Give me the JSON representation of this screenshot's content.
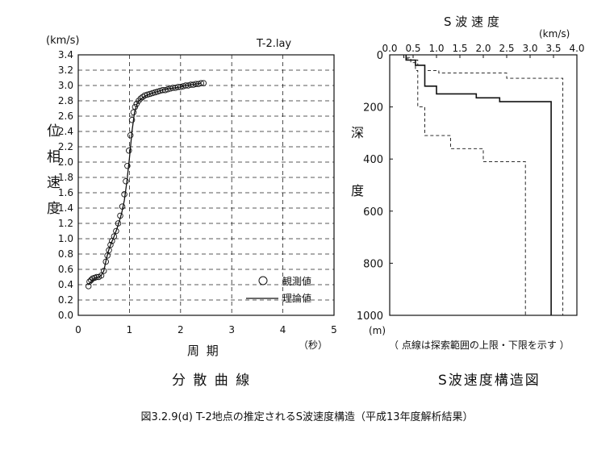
{
  "figure_caption": "図3.2.9(d)  T-2地点の推定されるS波速度構造（平成13年度解析結果）",
  "chart_data": [
    {
      "type": "scatter",
      "title": "T-2.lay",
      "caption": "分 散 曲 線",
      "xlabel": "周 期",
      "xunit": "（秒）",
      "ylabel": "位 相 速 度",
      "yunit": "(km/s)",
      "xlim": [
        0,
        5
      ],
      "ylim": [
        0,
        3.4
      ],
      "xticks": [
        "0",
        "1",
        "2",
        "3",
        "4",
        "5"
      ],
      "yticks": [
        "0.0",
        "0.2",
        "0.4",
        "0.6",
        "0.8",
        "1.0",
        "1.2",
        "1.4",
        "1.6",
        "1.8",
        "2.0",
        "2.2",
        "2.4",
        "2.6",
        "2.8",
        "3.0",
        "3.2",
        "3.4"
      ],
      "grid": true,
      "legend_position": "bottom-right",
      "series": [
        {
          "name": "観測値",
          "marker": "circle",
          "x": [
            0.2,
            0.22,
            0.25,
            0.28,
            0.32,
            0.36,
            0.4,
            0.45,
            0.5,
            0.54,
            0.57,
            0.6,
            0.63,
            0.66,
            0.7,
            0.74,
            0.78,
            0.82,
            0.86,
            0.9,
            0.93,
            0.96,
            0.99,
            1.02,
            1.05,
            1.08,
            1.11,
            1.14,
            1.18,
            1.22,
            1.26,
            1.3,
            1.35,
            1.4,
            1.45,
            1.5,
            1.55,
            1.6,
            1.65,
            1.7,
            1.75,
            1.8,
            1.85,
            1.9,
            1.95,
            2.0,
            2.05,
            2.1,
            2.15,
            2.2,
            2.25,
            2.3,
            2.35,
            2.4,
            2.45
          ],
          "y": [
            0.38,
            0.44,
            0.46,
            0.48,
            0.49,
            0.5,
            0.5,
            0.52,
            0.58,
            0.7,
            0.78,
            0.85,
            0.92,
            0.97,
            1.03,
            1.1,
            1.2,
            1.3,
            1.42,
            1.58,
            1.75,
            1.95,
            2.15,
            2.35,
            2.55,
            2.65,
            2.72,
            2.76,
            2.8,
            2.83,
            2.85,
            2.87,
            2.88,
            2.89,
            2.9,
            2.91,
            2.92,
            2.93,
            2.94,
            2.94,
            2.95,
            2.96,
            2.97,
            2.97,
            2.98,
            2.98,
            2.99,
            3.0,
            3.0,
            3.01,
            3.01,
            3.02,
            3.02,
            3.03,
            3.03
          ]
        },
        {
          "name": "理論値",
          "marker": "line",
          "x": [
            0.2,
            0.25,
            0.3,
            0.35,
            0.4,
            0.45,
            0.5,
            0.55,
            0.6,
            0.65,
            0.7,
            0.75,
            0.8,
            0.85,
            0.9,
            0.95,
            1.0,
            1.05,
            1.1,
            1.15,
            1.2,
            1.3,
            1.4,
            1.5,
            1.6,
            1.7,
            1.8,
            1.9,
            2.0,
            2.1,
            2.2,
            2.3,
            2.4
          ],
          "y": [
            0.4,
            0.44,
            0.47,
            0.49,
            0.5,
            0.52,
            0.58,
            0.74,
            0.86,
            0.95,
            1.03,
            1.12,
            1.22,
            1.34,
            1.5,
            1.74,
            2.05,
            2.4,
            2.65,
            2.76,
            2.81,
            2.86,
            2.89,
            2.91,
            2.93,
            2.95,
            2.96,
            2.97,
            2.98,
            3.0,
            3.01,
            3.02,
            3.03
          ]
        }
      ]
    },
    {
      "type": "line",
      "title": "S 波 速 度",
      "caption": "S波速度構造図",
      "xunit": "(km/s)",
      "ylabel": "深 度",
      "yunit": "(m)",
      "xlim": [
        0,
        4
      ],
      "ylim": [
        0,
        1000
      ],
      "y_inverted": true,
      "xticks": [
        "0.0",
        "0.5",
        "1.0",
        "1.5",
        "2.0",
        "2.5",
        "3.0",
        "3.5",
        "4.0"
      ],
      "yticks": [
        "0",
        "200",
        "400",
        "600",
        "800",
        "1000"
      ],
      "note": "（ 点線は探索範囲の上限・下限を示す ）",
      "series": [
        {
          "style": "solid",
          "steps": [
            [
              0.35,
              0
            ],
            [
              0.35,
              20
            ],
            [
              0.55,
              20
            ],
            [
              0.55,
              40
            ],
            [
              0.75,
              40
            ],
            [
              0.75,
              120
            ],
            [
              1.0,
              120
            ],
            [
              1.0,
              150
            ],
            [
              1.85,
              150
            ],
            [
              1.85,
              165
            ],
            [
              2.35,
              165
            ],
            [
              2.35,
              180
            ],
            [
              3.45,
              180
            ],
            [
              3.45,
              1000
            ]
          ]
        },
        {
          "style": "dashed",
          "steps": [
            [
              0.3,
              0
            ],
            [
              0.3,
              10
            ],
            [
              0.45,
              10
            ],
            [
              0.45,
              20
            ],
            [
              0.6,
              20
            ],
            [
              0.6,
              40
            ],
            [
              0.75,
              40
            ],
            [
              0.75,
              60
            ],
            [
              1.05,
              60
            ],
            [
              1.05,
              70
            ],
            [
              2.5,
              70
            ],
            [
              2.5,
              90
            ],
            [
              3.7,
              90
            ],
            [
              3.7,
              1000
            ]
          ]
        },
        {
          "style": "dashed",
          "steps": [
            [
              0.3,
              0
            ],
            [
              0.3,
              15
            ],
            [
              0.45,
              15
            ],
            [
              0.45,
              30
            ],
            [
              0.55,
              30
            ],
            [
              0.55,
              60
            ],
            [
              0.6,
              60
            ],
            [
              0.6,
              200
            ],
            [
              0.75,
              200
            ],
            [
              0.75,
              310
            ],
            [
              1.3,
              310
            ],
            [
              1.3,
              360
            ],
            [
              2.0,
              360
            ],
            [
              2.0,
              410
            ],
            [
              2.9,
              410
            ],
            [
              2.9,
              1000
            ]
          ]
        }
      ]
    }
  ]
}
